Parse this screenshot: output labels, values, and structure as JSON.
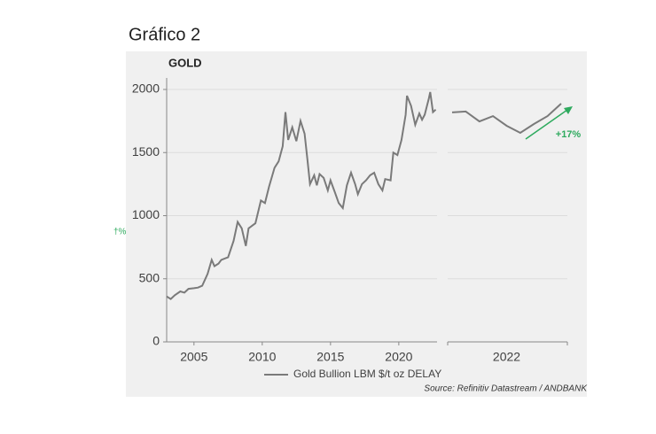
{
  "heading": "Gráfico 2",
  "side_fragment": "†%",
  "source": "Source: Refinitiv Datastream / ANDBANK",
  "chart_data": [
    {
      "type": "line",
      "title": "GOLD",
      "grid": true,
      "xlim": [
        2003,
        2022.8
      ],
      "xticks": [
        2005,
        2010,
        2015,
        2020
      ],
      "ylim": [
        0,
        2000
      ],
      "yticks": [
        0,
        500,
        1000,
        1500,
        2000
      ],
      "series": [
        {
          "name": "Gold Bullion LBM $/t oz DELAY",
          "color": "#7a7a7a",
          "x": [
            2003.0,
            2003.3,
            2003.6,
            2004.0,
            2004.3,
            2004.6,
            2005.0,
            2005.3,
            2005.6,
            2006.0,
            2006.3,
            2006.5,
            2006.8,
            2007.0,
            2007.5,
            2007.9,
            2008.2,
            2008.5,
            2008.8,
            2009.0,
            2009.5,
            2009.9,
            2010.2,
            2010.5,
            2010.9,
            2011.2,
            2011.5,
            2011.7,
            2011.9,
            2012.2,
            2012.5,
            2012.8,
            2013.1,
            2013.3,
            2013.5,
            2013.8,
            2014.0,
            2014.2,
            2014.5,
            2014.8,
            2015.0,
            2015.3,
            2015.6,
            2015.9,
            2016.2,
            2016.5,
            2016.8,
            2017.0,
            2017.3,
            2017.6,
            2017.9,
            2018.2,
            2018.5,
            2018.8,
            2019.0,
            2019.4,
            2019.6,
            2019.9,
            2020.2,
            2020.5,
            2020.6,
            2020.9,
            2021.2,
            2021.5,
            2021.7,
            2021.9,
            2022.2,
            2022.3,
            2022.5,
            2022.7
          ],
          "values": [
            360,
            340,
            370,
            400,
            390,
            420,
            425,
            430,
            445,
            540,
            650,
            600,
            620,
            650,
            670,
            800,
            950,
            900,
            760,
            900,
            940,
            1120,
            1100,
            1230,
            1380,
            1430,
            1550,
            1820,
            1600,
            1700,
            1590,
            1750,
            1650,
            1450,
            1250,
            1320,
            1240,
            1330,
            1300,
            1200,
            1280,
            1190,
            1100,
            1060,
            1240,
            1340,
            1250,
            1170,
            1250,
            1280,
            1320,
            1340,
            1250,
            1200,
            1290,
            1280,
            1500,
            1480,
            1600,
            1800,
            1950,
            1870,
            1720,
            1810,
            1760,
            1800,
            1930,
            1980,
            1820,
            1840
          ]
        }
      ]
    },
    {
      "type": "line",
      "annotation": "+17%",
      "annotation_color": "#2eaa5e",
      "grid": true,
      "ylim": [
        0,
        2000
      ],
      "categories": [
        null,
        null,
        null,
        null,
        "2022",
        null,
        null,
        null,
        null
      ],
      "series": [
        {
          "color": "#7a7a7a",
          "values": [
            1818,
            1825,
            1747,
            1789,
            1712,
            1656,
            1726,
            1789,
            1888
          ]
        }
      ]
    }
  ]
}
